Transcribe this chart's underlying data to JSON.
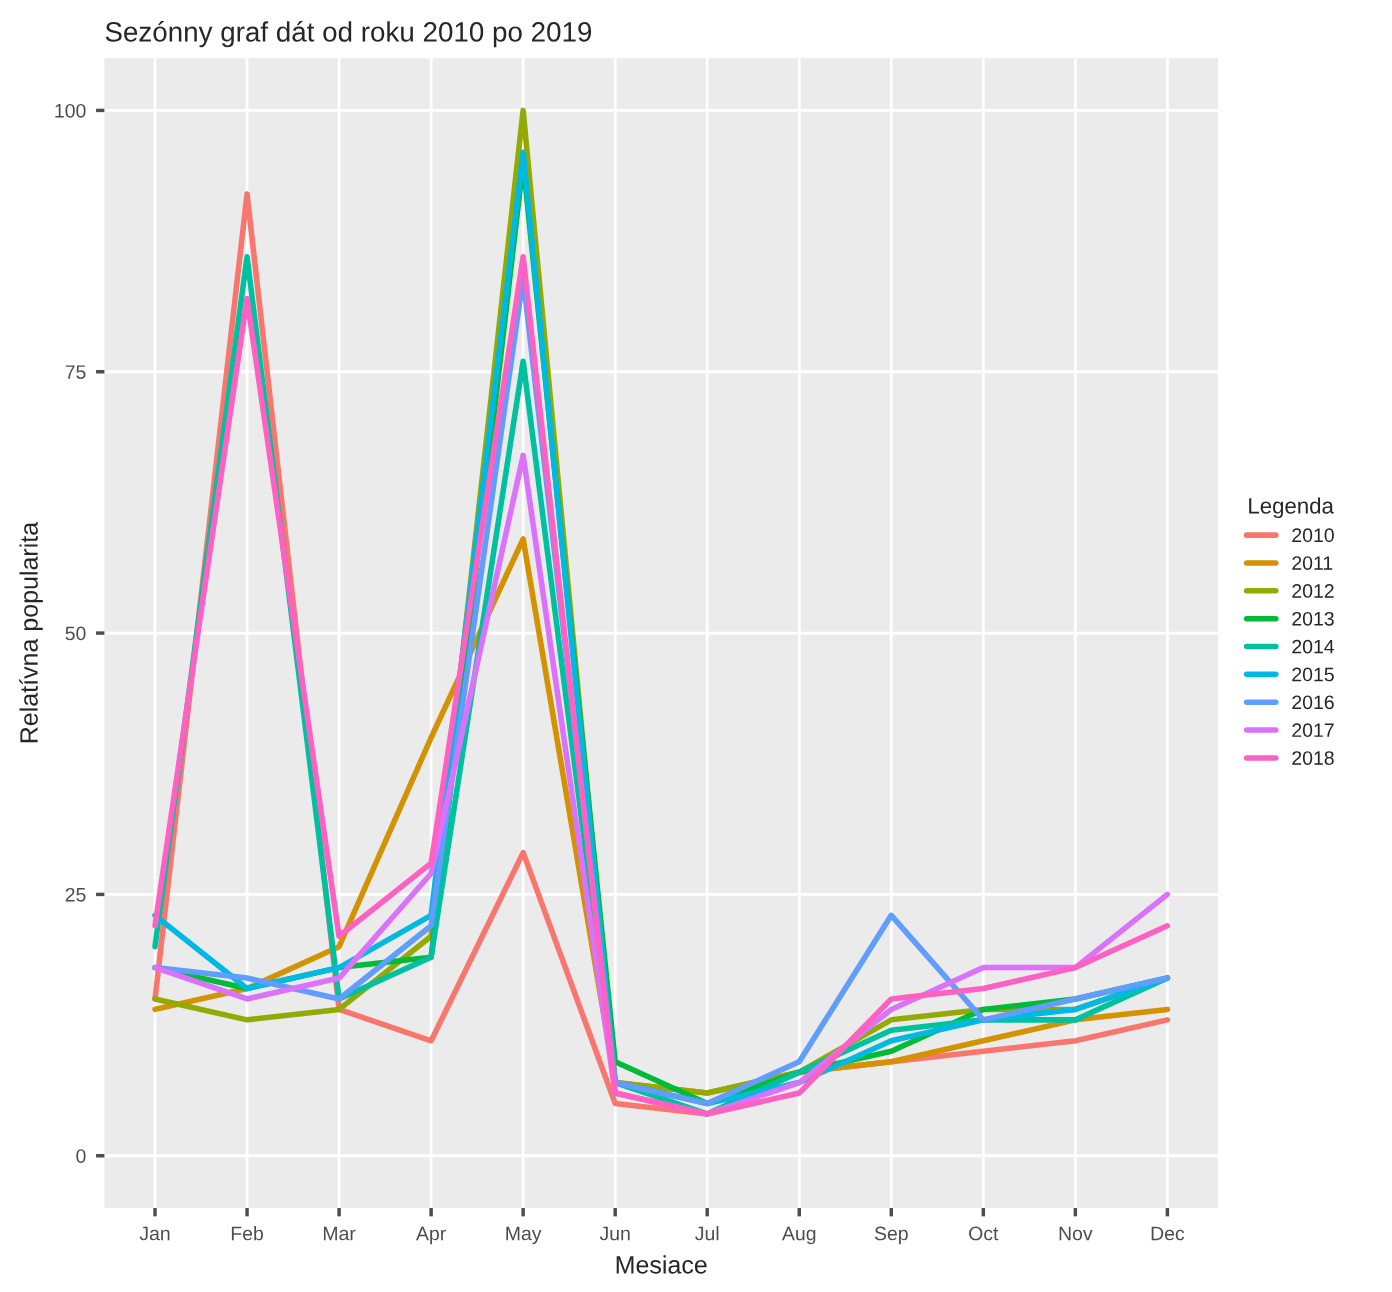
{
  "chart_data": {
    "type": "line",
    "title": "Sezónny graf dát od roku 2010 po 2019",
    "xlabel": "Mesiace",
    "ylabel": "Relatívna popularita",
    "legend_title": "Legenda",
    "categories": [
      "Jan",
      "Feb",
      "Mar",
      "Apr",
      "May",
      "Jun",
      "Jul",
      "Aug",
      "Sep",
      "Oct",
      "Nov",
      "Dec"
    ],
    "series": [
      {
        "name": "2010",
        "color": "#f8766d",
        "values": [
          15,
          92,
          14,
          11,
          29,
          5,
          4,
          8,
          9,
          10,
          11,
          13
        ]
      },
      {
        "name": "2011",
        "color": "#d39200",
        "values": [
          14,
          16,
          20,
          40,
          59,
          7,
          6,
          8,
          9,
          11,
          13,
          14
        ]
      },
      {
        "name": "2012",
        "color": "#93aa00",
        "values": [
          15,
          13,
          14,
          21,
          100,
          7,
          6,
          8,
          13,
          14,
          14,
          17
        ]
      },
      {
        "name": "2013",
        "color": "#00ba38",
        "values": [
          18,
          16,
          18,
          19,
          95,
          9,
          5,
          8,
          10,
          14,
          15,
          17
        ]
      },
      {
        "name": "2014",
        "color": "#00c19f",
        "values": [
          20,
          86,
          15,
          19,
          76,
          7,
          4,
          8,
          12,
          13,
          13,
          17
        ]
      },
      {
        "name": "2015",
        "color": "#00b9e3",
        "values": [
          23,
          16,
          18,
          23,
          96,
          7,
          5,
          7,
          11,
          13,
          14,
          17
        ]
      },
      {
        "name": "2016",
        "color": "#619cff",
        "values": [
          18,
          17,
          15,
          22,
          84,
          7,
          5,
          9,
          23,
          13,
          15,
          17
        ]
      },
      {
        "name": "2017",
        "color": "#db72fb",
        "values": [
          18,
          15,
          17,
          27,
          67,
          6,
          4,
          7,
          14,
          18,
          18,
          25
        ]
      },
      {
        "name": "2018",
        "color": "#ff61c3",
        "values": [
          22,
          82,
          21,
          28,
          86,
          6,
          4,
          6,
          15,
          16,
          18,
          22
        ]
      }
    ],
    "ylim": [
      -5,
      105
    ],
    "yticks": [
      0,
      25,
      50,
      75,
      100
    ],
    "grid": true,
    "legend": "right"
  }
}
